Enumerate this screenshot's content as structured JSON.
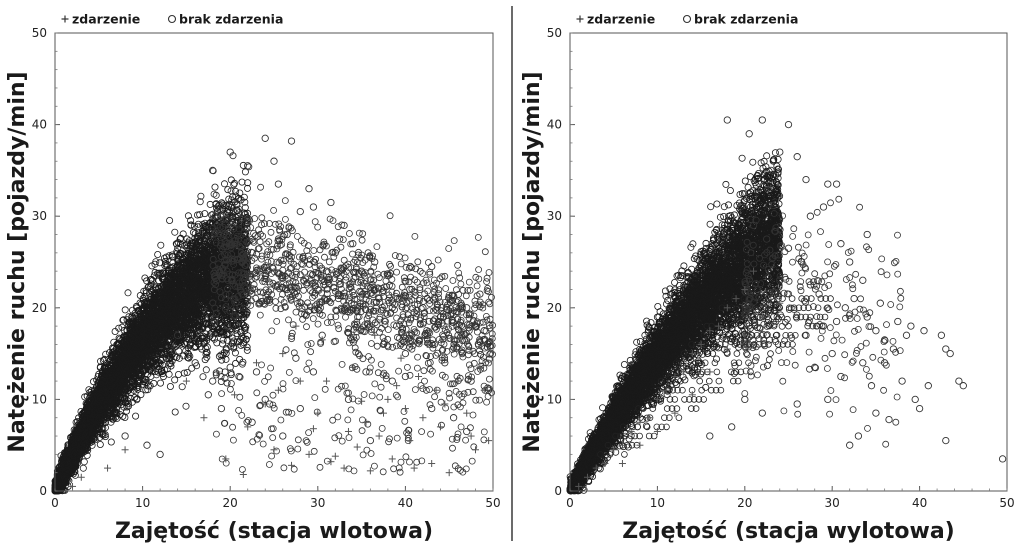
{
  "chart_data": [
    {
      "type": "scatter",
      "title": "",
      "xlabel": "Zajętość (stacja wlotowa)",
      "ylabel": "Natężenie ruchu [pojazdy/min]",
      "xlim": [
        0,
        50
      ],
      "ylim": [
        0,
        50
      ],
      "xticks": [
        "0",
        "10",
        "20",
        "30",
        "40",
        "50"
      ],
      "yticks": [
        "0",
        "10",
        "20",
        "30",
        "40",
        "50"
      ],
      "legend": {
        "placement": "top-left",
        "entries": [
          {
            "symbol": "+",
            "label": "zdarzenie"
          },
          {
            "symbol": "○",
            "label": "brak zdarzenia"
          }
        ]
      },
      "series": [
        {
          "name": "zdarzenie",
          "marker": "plus",
          "points": [
            [
              19.5,
              3.5
            ],
            [
              21.5,
              1.8
            ],
            [
              24,
              9.5
            ],
            [
              25,
              4.5
            ],
            [
              27,
              2.8
            ],
            [
              29,
              4
            ],
            [
              29.5,
              6.8
            ],
            [
              30,
              8.5
            ],
            [
              31,
              12
            ],
            [
              31.5,
              3.2
            ],
            [
              32,
              3.8
            ],
            [
              33,
              2.5
            ],
            [
              33.5,
              6.5
            ],
            [
              34.5,
              4.8
            ],
            [
              35,
              9.8
            ],
            [
              35.5,
              7.5
            ],
            [
              36,
              2.2
            ],
            [
              37,
              6
            ],
            [
              37.5,
              8.5
            ],
            [
              38,
              10
            ],
            [
              38.5,
              3.5
            ],
            [
              39,
              11.5
            ],
            [
              40,
              9
            ],
            [
              40.5,
              5.5
            ],
            [
              41,
              2.5
            ],
            [
              41.5,
              12.5
            ],
            [
              42,
              8
            ],
            [
              43,
              3
            ],
            [
              43.5,
              11
            ],
            [
              44,
              7
            ],
            [
              44.5,
              9.5
            ],
            [
              45,
              2
            ],
            [
              46,
              12
            ],
            [
              47,
              8.5
            ],
            [
              47.5,
              6
            ],
            [
              48,
              4.5
            ],
            [
              49,
              11
            ],
            [
              49.5,
              5.5
            ],
            [
              17,
              8
            ],
            [
              15,
              12
            ],
            [
              18.5,
              13
            ],
            [
              26,
              15
            ],
            [
              28,
              12
            ],
            [
              22,
              7
            ],
            [
              20.5,
              10.5
            ],
            [
              23,
              14
            ],
            [
              27.5,
              18
            ],
            [
              30.5,
              16.5
            ],
            [
              34,
              13.5
            ],
            [
              36.5,
              17
            ],
            [
              39.5,
              14.5
            ],
            [
              42.5,
              16
            ],
            [
              45.5,
              15.5
            ],
            [
              48.5,
              13.5
            ],
            [
              2,
              0.5
            ],
            [
              3,
              1.5
            ],
            [
              6,
              2.5
            ],
            [
              8,
              4.5
            ],
            [
              25.5,
              11
            ]
          ]
        },
        {
          "name": "brak zdarzenia",
          "marker": "circle",
          "points": [
            [
              24,
              38.5
            ],
            [
              27,
              38.2
            ],
            [
              31.5,
              31.5
            ],
            [
              29,
              33
            ],
            [
              33,
              29
            ],
            [
              36.5,
              25
            ],
            [
              38,
              23.5
            ],
            [
              40.5,
              22
            ],
            [
              43,
              24.5
            ],
            [
              45,
              21
            ],
            [
              47,
              20
            ],
            [
              48.5,
              21.5
            ],
            [
              32,
              26
            ],
            [
              34,
              27
            ],
            [
              26.5,
              28
            ],
            [
              35,
              24
            ],
            [
              30,
              22
            ],
            [
              39,
              18
            ],
            [
              44,
              19
            ],
            [
              46,
              17
            ],
            [
              49,
              17.5
            ],
            [
              42,
              20
            ],
            [
              28,
              30.5
            ],
            [
              25.5,
              33.5
            ],
            [
              37,
              21
            ],
            [
              41,
              19.5
            ],
            [
              34.5,
              20
            ],
            [
              31,
              24
            ],
            [
              18,
              12
            ],
            [
              19,
              9
            ],
            [
              16,
              14
            ],
            [
              17.5,
              10.5
            ],
            [
              21,
              12.5
            ],
            [
              23,
              13
            ],
            [
              20,
              13.5
            ],
            [
              26,
              6
            ],
            [
              28,
              9
            ],
            [
              22.5,
              7.5
            ],
            [
              24.5,
              9.5
            ],
            [
              29.5,
              13
            ],
            [
              33.5,
              10
            ],
            [
              36,
              5.5
            ],
            [
              38.5,
              12
            ],
            [
              40,
              15
            ],
            [
              44.5,
              14
            ],
            [
              47.5,
              12
            ],
            [
              49.5,
              11
            ],
            [
              43,
              9
            ],
            [
              45.5,
              8
            ],
            [
              47,
              6.5
            ],
            [
              14,
              17
            ],
            [
              21.5,
              16
            ],
            [
              24,
              10
            ],
            [
              27.5,
              14.5
            ],
            [
              30.5,
              17
            ],
            [
              35.5,
              13
            ],
            [
              12,
              4
            ],
            [
              10.5,
              5
            ],
            [
              8,
              6
            ],
            [
              20,
              37
            ],
            [
              25,
              36
            ],
            [
              18,
              35
            ],
            [
              22,
              35.5
            ],
            [
              29.5,
              31
            ],
            [
              32.5,
              27.5
            ],
            [
              38.5,
              20
            ],
            [
              42.5,
              17
            ],
            [
              46.5,
              15
            ],
            [
              48,
              18
            ],
            [
              40,
              12.5
            ],
            [
              37.5,
              16
            ]
          ]
        }
      ]
    },
    {
      "type": "scatter",
      "title": "",
      "xlabel": "Zajętość (stacja wylotowa)",
      "ylabel": "Natężenie ruchu [pojazdy/min]",
      "xlim": [
        0,
        50
      ],
      "ylim": [
        0,
        50
      ],
      "xticks": [
        "0",
        "10",
        "20",
        "30",
        "40",
        "50"
      ],
      "yticks": [
        "0",
        "10",
        "20",
        "30",
        "40",
        "50"
      ],
      "legend": {
        "placement": "top-left",
        "entries": [
          {
            "symbol": "+",
            "label": "zdarzenie"
          },
          {
            "symbol": "○",
            "label": "brak zdarzenia"
          }
        ]
      },
      "series": [
        {
          "name": "zdarzenie",
          "marker": "plus",
          "points": [
            [
              1,
              0.5
            ],
            [
              2,
              1.5
            ],
            [
              3,
              2.5
            ],
            [
              4,
              3
            ],
            [
              5,
              4.5
            ],
            [
              6,
              5
            ],
            [
              7,
              6.5
            ],
            [
              8,
              7.5
            ],
            [
              9,
              8
            ],
            [
              10,
              10
            ],
            [
              11,
              11
            ],
            [
              12,
              12.5
            ],
            [
              13,
              13
            ],
            [
              14,
              15
            ],
            [
              15,
              16
            ],
            [
              16,
              17.5
            ],
            [
              17,
              18
            ],
            [
              18,
              20
            ],
            [
              19,
              21
            ],
            [
              20,
              22
            ],
            [
              21,
              24
            ],
            [
              6,
              3
            ],
            [
              8,
              5
            ],
            [
              10,
              6.5
            ],
            [
              12,
              8.5
            ],
            [
              14,
              10.5
            ],
            [
              16,
              13
            ],
            [
              18,
              15.5
            ],
            [
              20,
              17
            ],
            [
              22,
              19
            ],
            [
              24,
              20.5
            ]
          ]
        },
        {
          "name": "brak zdarzenia",
          "marker": "circle",
          "points": [
            [
              18,
              40.5
            ],
            [
              22,
              40.5
            ],
            [
              25,
              40
            ],
            [
              20.5,
              39
            ],
            [
              24,
              37
            ],
            [
              26,
              36.5
            ],
            [
              23,
              35
            ],
            [
              27,
              34
            ],
            [
              29.5,
              33.5
            ],
            [
              30.5,
              33.5
            ],
            [
              29,
              31
            ],
            [
              34,
              28
            ],
            [
              27.5,
              30
            ],
            [
              31,
              27
            ],
            [
              32,
              25
            ],
            [
              33.5,
              23
            ],
            [
              35.5,
              20.5
            ],
            [
              37.5,
              18.5
            ],
            [
              38.5,
              17
            ],
            [
              39,
              18
            ],
            [
              40.5,
              17.5
            ],
            [
              42.5,
              17
            ],
            [
              43,
              15.5
            ],
            [
              43.5,
              15
            ],
            [
              36,
              16.5
            ],
            [
              37,
              15.5
            ],
            [
              38,
              12
            ],
            [
              39.5,
              10
            ],
            [
              40,
              9
            ],
            [
              41,
              11.5
            ],
            [
              44.5,
              12
            ],
            [
              45,
              11.5
            ],
            [
              49.5,
              3.5
            ],
            [
              43,
              5.5
            ],
            [
              36.5,
              7.8
            ],
            [
              35,
              8.5
            ],
            [
              34.5,
              11.5
            ],
            [
              33,
              6
            ],
            [
              32,
              5
            ],
            [
              31,
              12.5
            ],
            [
              30,
              15
            ],
            [
              29,
              18
            ],
            [
              28,
              13.5
            ],
            [
              27,
              17
            ],
            [
              26,
              9.5
            ],
            [
              22,
              8.5
            ],
            [
              20,
              10
            ],
            [
              18.5,
              7
            ],
            [
              16,
              6
            ],
            [
              30.5,
              18.5
            ],
            [
              32.5,
              21
            ],
            [
              34,
              19
            ],
            [
              28.5,
              21.5
            ],
            [
              26.5,
              25
            ],
            [
              25,
              26.5
            ],
            [
              24,
              23
            ],
            [
              22.5,
              27.5
            ],
            [
              21,
              29
            ],
            [
              19.5,
              31
            ],
            [
              36,
              14
            ],
            [
              33.5,
              14
            ],
            [
              29.5,
              10
            ],
            [
              35,
              17.5
            ],
            [
              31.5,
              20
            ],
            [
              27.5,
              22.5
            ]
          ]
        }
      ]
    }
  ]
}
